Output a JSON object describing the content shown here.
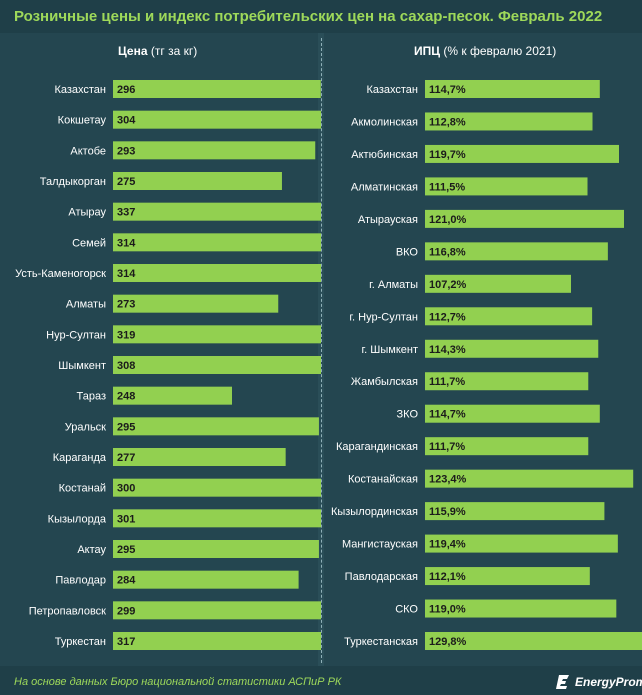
{
  "title": "Розничные цены и индекс потребительских цен на сахар-песок. Февраль 2022",
  "footer_note": "На основе данных Бюро национальной статистики АСПиР РК",
  "logo_text": "EnergyProm",
  "colors": {
    "background": "#2a4e58",
    "panel": "#244650",
    "bar": "#92d050",
    "accent": "#9ed95a",
    "text": "#ffffff"
  },
  "chart_data": [
    {
      "type": "bar",
      "orientation": "horizontal",
      "title": "Цена",
      "unit": "(тг за кг)",
      "categories": [
        "Казахстан",
        "Кокшетау",
        "Актобе",
        "Талдыкорган",
        "Атырау",
        "Семей",
        "Усть-Каменогорск",
        "Алматы",
        "Нур-Султан",
        "Шымкент",
        "Тараз",
        "Уральск",
        "Караганда",
        "Костанай",
        "Кызылорда",
        "Актау",
        "Павлодар",
        "Петропавловск",
        "Туркестан"
      ],
      "values": [
        296,
        304,
        293,
        275,
        337,
        314,
        314,
        273,
        319,
        308,
        248,
        295,
        277,
        300,
        301,
        295,
        284,
        299,
        317
      ],
      "labels": [
        "296",
        "304",
        "293",
        "275",
        "337",
        "314",
        "314",
        "273",
        "319",
        "308",
        "248",
        "295",
        "277",
        "300",
        "301",
        "295",
        "284",
        "299",
        "317"
      ]
    },
    {
      "type": "bar",
      "orientation": "horizontal",
      "title": "ИПЦ",
      "unit": "(% к февралю 2021)",
      "categories": [
        "Казахстан",
        "Акмолинская",
        "Актюбинская",
        "Алматинская",
        "Атырауская",
        "ВКО",
        "г. Алматы",
        "г. Нур-Султан",
        "г. Шымкент",
        "Жамбылская",
        "ЗКО",
        "Карагандинская",
        "Костанайская",
        "Кызылординская",
        "Мангистауская",
        "Павлодарская",
        "СКО",
        "Туркестанская"
      ],
      "values": [
        114.7,
        112.8,
        119.7,
        111.5,
        121.0,
        116.8,
        107.2,
        112.7,
        114.3,
        111.7,
        114.7,
        111.7,
        123.4,
        115.9,
        119.4,
        112.1,
        119.0,
        129.8
      ],
      "labels": [
        "114,7%",
        "112,8%",
        "119,7%",
        "111,5%",
        "121,0%",
        "116,8%",
        "107,2%",
        "112,7%",
        "114,3%",
        "111,7%",
        "114,7%",
        "111,7%",
        "123,4%",
        "115,9%",
        "119,4%",
        "112,1%",
        "119,0%",
        "129,8%"
      ]
    }
  ]
}
